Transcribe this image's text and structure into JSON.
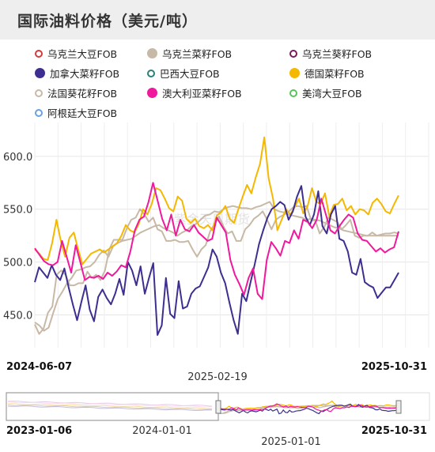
{
  "title": "国际油料价格（美元/吨）",
  "watermark": "紫金天风期货",
  "legend": [
    {
      "name": "乌克兰大豆FOB",
      "color": "#d9383a",
      "style": "hollow"
    },
    {
      "name": "乌克兰菜籽FOB",
      "color": "#c7b9a6",
      "style": "solid"
    },
    {
      "name": "乌克兰葵籽FOB",
      "color": "#7a1a5c",
      "style": "hollow"
    },
    {
      "name": "加拿大菜籽FOB",
      "color": "#3d2f8f",
      "style": "solid"
    },
    {
      "name": "巴西大豆FOB",
      "color": "#2a7f7a",
      "style": "hollow"
    },
    {
      "name": "德国菜籽FOB",
      "color": "#f5b800",
      "style": "solid"
    },
    {
      "name": "法国葵花籽FOB",
      "color": "#c7b9a6",
      "style": "hollow"
    },
    {
      "name": "澳大利亚菜籽FOB",
      "color": "#f0189c",
      "style": "solid"
    },
    {
      "name": "美湾大豆FOB",
      "color": "#5ac25a",
      "style": "hollow"
    },
    {
      "name": "阿根廷大豆FOB",
      "color": "#6aa0e0",
      "style": "hollow"
    }
  ],
  "axis": {
    "y_ticks": [
      "600.0",
      "550.0",
      "500.0",
      "450.0"
    ],
    "x_start": "2024-06-07",
    "x_mid": "2025-02-19",
    "x_end": "2025-10-31"
  },
  "navigator": {
    "start": "2023-01-06",
    "mid1": "2024-01-01",
    "mid2": "2025-01-01",
    "end": "2025-10-31"
  },
  "chart_data": {
    "type": "line",
    "title": "国际油料价格（美元/吨）",
    "x_range": [
      "2024-06-07",
      "2025-10-31"
    ],
    "x_ticks": [
      "2024-06-07",
      "2025-02-19",
      "2025-10-31"
    ],
    "y_ticks": [
      450,
      500,
      550,
      600
    ],
    "ylim": [
      425,
      632
    ],
    "grid": true,
    "legend_position": "top",
    "series": [
      {
        "name": "加拿大菜籽FOB",
        "color": "#3d2f8f",
        "values": [
          481,
          495,
          490,
          485,
          497,
          488,
          483,
          494,
          476,
          460,
          445,
          462,
          478,
          455,
          444,
          467,
          474,
          466,
          460,
          470,
          484,
          469,
          500,
          492,
          478,
          496,
          470,
          485,
          499,
          431,
          440,
          485,
          451,
          447,
          482,
          456,
          458,
          470,
          475,
          477,
          486,
          495,
          512,
          505,
          490,
          480,
          462,
          445,
          432,
          470,
          463,
          481,
          498,
          517,
          530,
          542,
          550,
          553,
          557,
          554,
          540,
          548,
          562,
          572,
          543,
          535,
          545,
          567,
          534,
          527,
          545,
          553,
          522,
          520,
          510,
          490,
          488,
          503,
          481,
          478,
          476,
          466,
          471,
          476,
          476,
          483,
          490
        ]
      },
      {
        "name": "德国菜籽FOB",
        "color": "#f5b800",
        "values": [
          512,
          508,
          503,
          502,
          518,
          540,
          520,
          505,
          523,
          528,
          512,
          498,
          503,
          508,
          510,
          512,
          509,
          512,
          515,
          518,
          525,
          535,
          530,
          528,
          536,
          550,
          545,
          555,
          570,
          568,
          560,
          551,
          548,
          562,
          558,
          541,
          537,
          541,
          534,
          532,
          535,
          530,
          544,
          547,
          553,
          541,
          537,
          550,
          562,
          573,
          565,
          580,
          593,
          618,
          579,
          560,
          530,
          540,
          550,
          545,
          552,
          560,
          546,
          553,
          570,
          557,
          555,
          565,
          543,
          554,
          555,
          560,
          549,
          553,
          545,
          550,
          549,
          545,
          556,
          560,
          555,
          548,
          546,
          555,
          563
        ]
      },
      {
        "name": "澳大利亚菜籽FOB",
        "color": "#f0189c",
        "values": [
          513,
          507,
          501,
          498,
          497,
          500,
          520,
          505,
          490,
          516,
          500,
          483,
          486,
          485,
          487,
          484,
          490,
          487,
          491,
          497,
          495,
          510,
          530,
          540,
          543,
          557,
          575,
          558,
          541,
          530,
          545,
          525,
          540,
          531,
          529,
          535,
          528,
          524,
          520,
          522,
          542,
          535,
          528,
          502,
          488,
          479,
          469,
          485,
          494,
          470,
          465,
          502,
          519,
          513,
          506,
          520,
          518,
          530,
          522,
          540,
          538,
          532,
          540,
          560,
          545,
          530,
          527,
          534,
          540,
          545,
          542,
          527,
          521,
          520,
          515,
          510,
          513,
          509,
          512,
          514,
          529
        ]
      },
      {
        "name": "乌克兰菜籽FOB",
        "color": "#c7b9a6",
        "values": [
          441,
          432,
          437,
          452,
          458,
          488,
          492,
          488,
          478,
          478,
          480,
          480,
          491,
          485,
          488,
          483,
          492,
          512,
          521,
          521,
          521,
          532,
          540,
          542,
          550,
          545,
          538,
          542,
          531,
          529,
          520,
          520,
          521,
          519,
          519,
          520,
          512,
          505,
          512,
          516,
          529,
          536,
          543,
          534,
          527,
          529,
          520,
          520,
          531,
          535,
          541,
          544,
          548,
          540,
          531,
          540,
          543,
          545,
          548,
          552,
          553,
          552,
          553,
          540,
          539,
          527,
          533,
          542,
          540,
          538,
          531,
          535,
          540,
          525,
          523,
          525,
          525,
          528,
          525,
          526,
          527,
          527,
          528,
          527
        ]
      },
      {
        "name": "法国葵花籽FOB",
        "color": "#c7b9a6",
        "values": [
          443,
          440,
          435,
          438,
          452,
          465,
          472,
          480,
          485,
          492,
          493,
          495,
          496,
          500,
          507,
          511,
          505,
          515,
          518,
          520,
          521,
          522,
          525,
          528,
          530,
          532,
          534,
          535,
          532,
          530,
          528,
          525,
          528,
          530,
          534,
          536,
          540,
          544,
          545,
          548,
          547,
          550,
          552,
          553,
          552,
          551,
          551,
          550,
          552,
          553,
          555,
          557,
          550,
          548,
          547,
          545,
          544,
          543,
          542,
          540,
          541,
          540,
          539,
          537,
          535,
          533,
          532,
          530,
          529,
          528,
          527,
          526,
          525,
          525,
          525,
          525,
          525,
          525,
          525,
          525
        ]
      }
    ]
  }
}
